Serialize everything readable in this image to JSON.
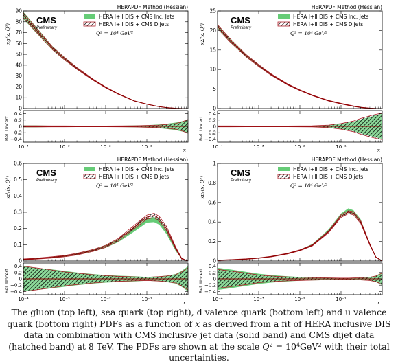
{
  "caption": {
    "part1": "The gluon (top left), sea quark (top right), d valence quark (bottom left) and u valence quark (bottom right) PDFs as a function of ",
    "x_var": "x",
    "part2": " as derived from a fit of HERA inclusive DIS data in combination with CMS inclusive jet data (solid band) and CMS dijet data (hatched band) at 8 TeV. The PDFs are shown at the scale ",
    "q": "Q",
    "sup2": "2",
    "eq": " = 10",
    "sup4": "4",
    "unit": "GeV",
    "sup2b": "2",
    "part3": " with their total uncertainties."
  },
  "colors": {
    "solid_band": "#66cc77",
    "hatch_band": "#b0202a",
    "central": "#8b0000",
    "frame": "#000000"
  },
  "chart_data": [
    {
      "id": "gluon",
      "type": "area",
      "method_label": "HERAPDF Method (Hessian)",
      "cms": "CMS",
      "prelim": "Preliminary",
      "legend": [
        "HERA I+II DIS + CMS Inc. Jets",
        "HERA I+II DIS + CMS Dijets"
      ],
      "scale": "Q² = 10⁴ GeV²",
      "ylabel": "xg(x, Q²)",
      "ratio_ylabel": "Rel. Uncert.",
      "xlabel": "x",
      "xscale": "log",
      "xlim": [
        0.0001,
        1
      ],
      "ylim": [
        0,
        90
      ],
      "yticks": [
        0,
        10,
        20,
        30,
        40,
        50,
        60,
        70,
        80,
        90
      ],
      "ratio_ylim": [
        -0.5,
        0.5
      ],
      "ratio_ticks": [
        "0.4",
        "0.2",
        "0",
        "−0.2",
        "−0.4"
      ],
      "xticks": [
        "10⁻⁴",
        "10⁻³",
        "10⁻²",
        "10⁻¹"
      ],
      "x": [
        0.0001,
        0.0002,
        0.0005,
        0.001,
        0.002,
        0.005,
        0.01,
        0.02,
        0.05,
        0.1,
        0.2,
        0.3,
        0.5,
        0.7,
        1
      ],
      "y": [
        86,
        73,
        56,
        46,
        37,
        26.5,
        19.5,
        13.5,
        7,
        4,
        1.7,
        0.9,
        0.25,
        0.05,
        0
      ],
      "band_inc": [
        0.03,
        0.03,
        0.02,
        0.02,
        0.015,
        0.015,
        0.015,
        0.02,
        0.03,
        0.04,
        0.06,
        0.08,
        0.12,
        0.16,
        0.2
      ],
      "band_dijet": [
        0.02,
        0.02,
        0.015,
        0.015,
        0.012,
        0.012,
        0.012,
        0.015,
        0.02,
        0.03,
        0.04,
        0.06,
        0.09,
        0.14,
        0.22
      ]
    },
    {
      "id": "sea",
      "type": "area",
      "method_label": "HERAPDF Method (Hessian)",
      "cms": "CMS",
      "prelim": "Preliminary",
      "legend": [
        "HERA I+II DIS + CMS Inc. Jets",
        "HERA I+II DIS + CMS Dijets"
      ],
      "scale": "Q² = 10⁴ GeV²",
      "ylabel": "xΣ(x, Q²)",
      "ratio_ylabel": "Rel. Uncert.",
      "xlabel": "x",
      "xscale": "log",
      "xlim": [
        0.0001,
        1
      ],
      "ylim": [
        0,
        25
      ],
      "yticks": [
        0,
        5,
        10,
        15,
        20,
        25
      ],
      "ytick_labels": [
        "0",
        "5",
        "10",
        "15",
        "20",
        "25"
      ],
      "ratio_ylim": [
        -0.5,
        0.5
      ],
      "ratio_ticks": [
        "0.4",
        "0.2",
        "0",
        "−0.2",
        "−0.4"
      ],
      "xticks": [
        "10⁻⁴",
        "10⁻³",
        "10⁻²",
        "10⁻¹"
      ],
      "x": [
        0.0001,
        0.0002,
        0.0005,
        0.001,
        0.002,
        0.005,
        0.01,
        0.02,
        0.05,
        0.1,
        0.2,
        0.3,
        0.5,
        0.7,
        1
      ],
      "y": [
        21,
        17.5,
        13.5,
        11,
        8.7,
        6.2,
        4.7,
        3.4,
        2,
        1.25,
        0.6,
        0.3,
        0.08,
        0.02,
        0
      ],
      "band_inc": [
        0.015,
        0.015,
        0.012,
        0.012,
        0.012,
        0.012,
        0.015,
        0.02,
        0.04,
        0.08,
        0.15,
        0.22,
        0.3,
        0.35,
        0.4
      ],
      "band_dijet": [
        0.015,
        0.015,
        0.012,
        0.012,
        0.012,
        0.012,
        0.015,
        0.02,
        0.04,
        0.09,
        0.17,
        0.25,
        0.33,
        0.38,
        0.42
      ]
    },
    {
      "id": "dv",
      "type": "area",
      "method_label": "HERAPDF Method (Hessian)",
      "cms": "CMS",
      "prelim": "Preliminary",
      "legend": [
        "HERA I+II DIS + CMS Inc. Jets",
        "HERA I+II DIS + CMS Dijets"
      ],
      "scale": "Q² = 10⁴ GeV²",
      "ylabel": "xdᵥ(x, Q²)",
      "ratio_ylabel": "Rel. Uncert.",
      "xlabel": "x",
      "xscale": "log",
      "xlim": [
        0.0001,
        1
      ],
      "ylim": [
        0,
        0.6
      ],
      "yticks": [
        0,
        0.1,
        0.2,
        0.3,
        0.4,
        0.5,
        0.6
      ],
      "ytick_labels": [
        "0",
        "0.1",
        "0.2",
        "0.3",
        "0.4",
        "0.5",
        "0.6"
      ],
      "ratio_ylim": [
        -0.5,
        0.5
      ],
      "ratio_ticks": [
        "0.4",
        "0.2",
        "0",
        "−0.2",
        "−0.4"
      ],
      "xticks": [
        "10⁻⁴",
        "10⁻³",
        "10⁻²",
        "10⁻¹"
      ],
      "x": [
        0.0001,
        0.0002,
        0.0005,
        0.001,
        0.002,
        0.005,
        0.01,
        0.02,
        0.05,
        0.1,
        0.15,
        0.2,
        0.3,
        0.5,
        0.7,
        1
      ],
      "y": [
        0.01,
        0.014,
        0.022,
        0.03,
        0.042,
        0.065,
        0.09,
        0.13,
        0.21,
        0.27,
        0.28,
        0.26,
        0.2,
        0.08,
        0.015,
        0
      ],
      "y_inc": [
        0.01,
        0.014,
        0.022,
        0.03,
        0.042,
        0.065,
        0.09,
        0.125,
        0.195,
        0.25,
        0.255,
        0.24,
        0.18,
        0.07,
        0.014,
        0
      ],
      "band_inc": [
        0.4,
        0.35,
        0.3,
        0.25,
        0.2,
        0.15,
        0.12,
        0.1,
        0.08,
        0.06,
        0.07,
        0.08,
        0.1,
        0.15,
        0.25,
        0.4
      ],
      "band_dijet": [
        0.4,
        0.35,
        0.28,
        0.22,
        0.18,
        0.13,
        0.1,
        0.08,
        0.06,
        0.05,
        0.06,
        0.07,
        0.09,
        0.13,
        0.22,
        0.35
      ]
    },
    {
      "id": "uv",
      "type": "area",
      "method_label": "HERAPDF Method (Hessian)",
      "cms": "CMS",
      "prelim": "Preliminary",
      "legend": [
        "HERA I+II DIS + CMS Inc. Jets",
        "HERA I+II DIS + CMS Dijets"
      ],
      "scale": "Q² = 10⁴ GeV²",
      "ylabel": "xuᵥ(x, Q²)",
      "ratio_ylabel": "Rel. Uncert.",
      "xlabel": "x",
      "xscale": "log",
      "xlim": [
        0.0001,
        1
      ],
      "ylim": [
        0,
        1
      ],
      "yticks": [
        0,
        0.2,
        0.4,
        0.6,
        0.8,
        1.0
      ],
      "ytick_labels": [
        "0",
        "0.2",
        "0.4",
        "0.6",
        "0.8",
        "1"
      ],
      "ratio_ylim": [
        -0.5,
        0.5
      ],
      "ratio_ticks": [
        "0.4",
        "0.2",
        "0",
        "−0.2",
        "−0.4"
      ],
      "xticks": [
        "10⁻⁴",
        "10⁻³",
        "10⁻²",
        "10⁻¹"
      ],
      "x": [
        0.0001,
        0.0002,
        0.0005,
        0.001,
        0.002,
        0.005,
        0.01,
        0.02,
        0.05,
        0.1,
        0.15,
        0.2,
        0.3,
        0.5,
        0.7,
        1
      ],
      "y": [
        0.008,
        0.012,
        0.02,
        0.03,
        0.045,
        0.075,
        0.11,
        0.16,
        0.3,
        0.46,
        0.5,
        0.49,
        0.4,
        0.17,
        0.04,
        0
      ],
      "y_inc": [
        0.008,
        0.012,
        0.02,
        0.03,
        0.045,
        0.075,
        0.11,
        0.165,
        0.31,
        0.47,
        0.52,
        0.5,
        0.41,
        0.17,
        0.04,
        0
      ],
      "band_inc": [
        0.35,
        0.3,
        0.22,
        0.16,
        0.12,
        0.08,
        0.06,
        0.05,
        0.04,
        0.03,
        0.03,
        0.035,
        0.04,
        0.06,
        0.1,
        0.2
      ],
      "band_dijet": [
        0.3,
        0.25,
        0.18,
        0.12,
        0.09,
        0.06,
        0.05,
        0.04,
        0.03,
        0.025,
        0.025,
        0.03,
        0.035,
        0.05,
        0.09,
        0.18
      ]
    }
  ]
}
